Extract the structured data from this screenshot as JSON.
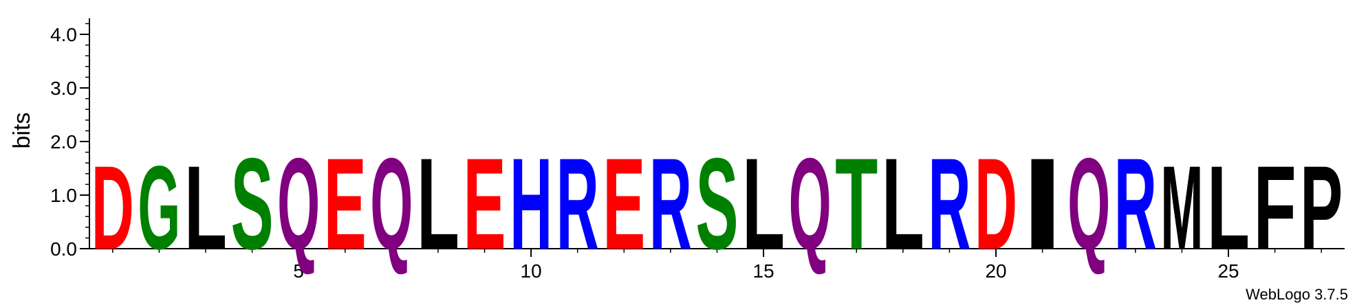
{
  "chart_data": {
    "type": "sequence-logo",
    "ylabel": "bits",
    "ylim": [
      0,
      4.3
    ],
    "y_ticks": [
      {
        "value": 0.0,
        "label": "0.0"
      },
      {
        "value": 1.0,
        "label": "1.0"
      },
      {
        "value": 2.0,
        "label": "2.0"
      },
      {
        "value": 3.0,
        "label": "3.0"
      },
      {
        "value": 4.0,
        "label": "4.0"
      }
    ],
    "x_range": [
      1,
      27
    ],
    "x_ticks": [
      {
        "value": 5,
        "label": "5"
      },
      {
        "value": 10,
        "label": "10"
      },
      {
        "value": 15,
        "label": "15"
      },
      {
        "value": 20,
        "label": "20"
      },
      {
        "value": 25,
        "label": "25"
      }
    ],
    "positions": [
      {
        "pos": 1,
        "residue": "D",
        "bits": 1.6,
        "color": "#ff0000"
      },
      {
        "pos": 2,
        "residue": "G",
        "bits": 1.6,
        "color": "#008000"
      },
      {
        "pos": 3,
        "residue": "L",
        "bits": 1.6,
        "color": "#000000"
      },
      {
        "pos": 4,
        "residue": "S",
        "bits": 1.75,
        "color": "#008000"
      },
      {
        "pos": 5,
        "residue": "Q",
        "bits": 1.75,
        "color": "#800080"
      },
      {
        "pos": 6,
        "residue": "E",
        "bits": 1.75,
        "color": "#ff0000"
      },
      {
        "pos": 7,
        "residue": "Q",
        "bits": 1.75,
        "color": "#800080"
      },
      {
        "pos": 8,
        "residue": "L",
        "bits": 1.75,
        "color": "#000000"
      },
      {
        "pos": 9,
        "residue": "E",
        "bits": 1.75,
        "color": "#ff0000"
      },
      {
        "pos": 10,
        "residue": "H",
        "bits": 1.75,
        "color": "#0000ff"
      },
      {
        "pos": 11,
        "residue": "R",
        "bits": 1.75,
        "color": "#0000ff"
      },
      {
        "pos": 12,
        "residue": "E",
        "bits": 1.75,
        "color": "#ff0000"
      },
      {
        "pos": 13,
        "residue": "R",
        "bits": 1.75,
        "color": "#0000ff"
      },
      {
        "pos": 14,
        "residue": "S",
        "bits": 1.75,
        "color": "#008000"
      },
      {
        "pos": 15,
        "residue": "L",
        "bits": 1.75,
        "color": "#000000"
      },
      {
        "pos": 16,
        "residue": "Q",
        "bits": 1.75,
        "color": "#800080"
      },
      {
        "pos": 17,
        "residue": "T",
        "bits": 1.75,
        "color": "#008000"
      },
      {
        "pos": 18,
        "residue": "L",
        "bits": 1.75,
        "color": "#000000"
      },
      {
        "pos": 19,
        "residue": "R",
        "bits": 1.75,
        "color": "#0000ff"
      },
      {
        "pos": 20,
        "residue": "D",
        "bits": 1.75,
        "color": "#ff0000"
      },
      {
        "pos": 21,
        "residue": "I",
        "bits": 1.75,
        "color": "#000000"
      },
      {
        "pos": 22,
        "residue": "Q",
        "bits": 1.75,
        "color": "#800080"
      },
      {
        "pos": 23,
        "residue": "R",
        "bits": 1.75,
        "color": "#0000ff"
      },
      {
        "pos": 24,
        "residue": "M",
        "bits": 1.6,
        "color": "#000000"
      },
      {
        "pos": 25,
        "residue": "L",
        "bits": 1.6,
        "color": "#000000"
      },
      {
        "pos": 26,
        "residue": "F",
        "bits": 1.6,
        "color": "#000000"
      },
      {
        "pos": 27,
        "residue": "P",
        "bits": 1.6,
        "color": "#000000"
      }
    ]
  },
  "credit": "WebLogo 3.7.5"
}
